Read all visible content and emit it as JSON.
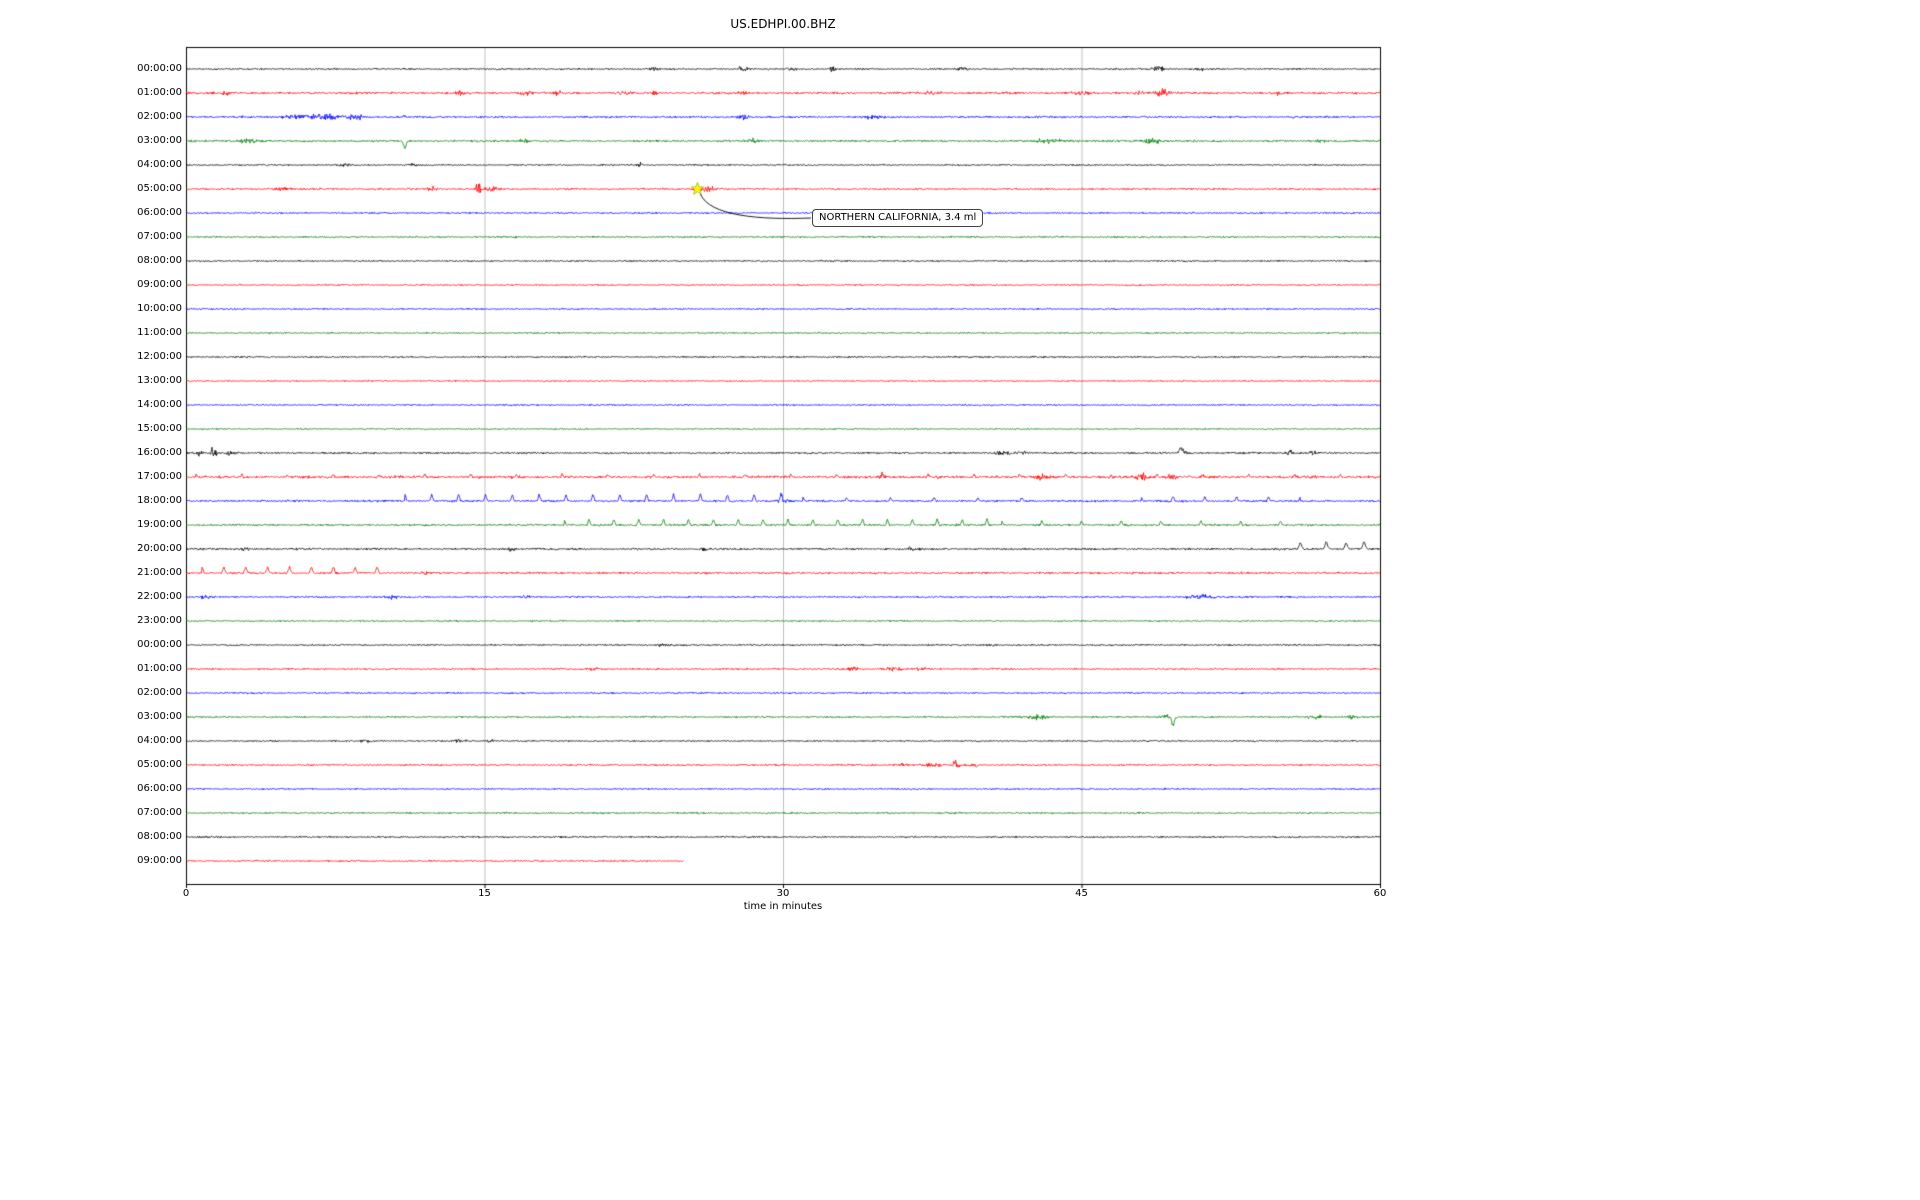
{
  "title": "US.EDHPI.00.BHZ",
  "chart_data": {
    "type": "seismogram-helicorder",
    "station": "US.EDHPI.00.BHZ",
    "xlabel": "time in minutes",
    "x_ticks": [
      0,
      15,
      30,
      45,
      60
    ],
    "x_range_minutes": [
      0,
      60
    ],
    "grid_minutes": [
      15,
      30,
      45
    ],
    "minutes_per_row": 60,
    "grid_color": "#b0b0b0",
    "colors": {
      "black": "#000000",
      "red": "#ff0000",
      "blue": "#0000ff",
      "green": "#008000"
    },
    "annotation": {
      "text": "NORTHERN CALIFORNIA, 3.4 ml",
      "row_index": 5,
      "minute": 25.7,
      "marker": "yellow-star",
      "marker_color": "#ffff00"
    },
    "rows": [
      {
        "label": "00:00:00",
        "color": "black",
        "noise": 1.0,
        "events": [
          {
            "t": 23.5,
            "dur": 0.3,
            "amp": 1.8
          },
          {
            "t": 28,
            "dur": 0.4,
            "amp": 3.2
          },
          {
            "t": 30.5,
            "dur": 0.3,
            "amp": 2.5
          },
          {
            "t": 32.5,
            "dur": 0.22,
            "amp": 5
          },
          {
            "t": 39,
            "dur": 0.3,
            "amp": 3.2
          },
          {
            "t": 48.8,
            "dur": 0.5,
            "amp": 4
          },
          {
            "t": 51,
            "dur": 0.3,
            "amp": 2.2
          }
        ]
      },
      {
        "label": "01:00:00",
        "color": "red",
        "noise": 1.3,
        "events": [
          {
            "t": 2,
            "dur": 0.4,
            "amp": 2.2
          },
          {
            "t": 13.8,
            "dur": 0.3,
            "amp": 4
          },
          {
            "t": 17,
            "dur": 0.4,
            "amp": 3.5
          },
          {
            "t": 18.7,
            "dur": 0.3,
            "amp": 3
          },
          {
            "t": 22,
            "dur": 0.4,
            "amp": 3
          },
          {
            "t": 23.5,
            "dur": 0.3,
            "amp": 2.5
          },
          {
            "t": 28,
            "dur": 0.4,
            "amp": 2
          },
          {
            "t": 37.5,
            "dur": 0.5,
            "amp": 2.3
          },
          {
            "t": 45,
            "dur": 0.5,
            "amp": 3.5
          },
          {
            "t": 48,
            "dur": 0.4,
            "amp": 3
          },
          {
            "t": 49,
            "dur": 0.45,
            "amp": 6.5
          },
          {
            "t": 55,
            "dur": 0.4,
            "amp": 2
          }
        ]
      },
      {
        "label": "02:00:00",
        "color": "blue",
        "noise": 1.2,
        "events": [
          {
            "t": 5.5,
            "dur": 0.8,
            "amp": 2.8
          },
          {
            "t": 7,
            "dur": 0.9,
            "amp": 4.5
          },
          {
            "t": 8.5,
            "dur": 0.7,
            "amp": 3.2
          },
          {
            "t": 11,
            "dur": 0.2,
            "amp": 3
          },
          {
            "t": 28,
            "dur": 0.4,
            "amp": 3
          },
          {
            "t": 34.5,
            "dur": 0.5,
            "amp": 3
          }
        ]
      },
      {
        "label": "03:00:00",
        "color": "green",
        "noise": 1.2,
        "events": [
          {
            "t": 3.2,
            "dur": 0.8,
            "amp": 3.2
          },
          {
            "t": 11,
            "dur": 0.12,
            "amp": 7,
            "type": "down"
          },
          {
            "t": 17,
            "dur": 0.4,
            "amp": 2.5
          },
          {
            "t": 28.5,
            "dur": 0.35,
            "amp": 3.2
          },
          {
            "t": 43.5,
            "dur": 1.2,
            "amp": 2.4
          },
          {
            "t": 48.5,
            "dur": 0.8,
            "amp": 3.4
          },
          {
            "t": 57,
            "dur": 0.4,
            "amp": 2
          }
        ]
      },
      {
        "label": "04:00:00",
        "color": "black",
        "noise": 0.9,
        "events": [
          {
            "t": 8,
            "dur": 0.5,
            "amp": 2
          },
          {
            "t": 11.5,
            "dur": 0.4,
            "amp": 2.4
          },
          {
            "t": 22.8,
            "dur": 0.2,
            "amp": 3
          }
        ]
      },
      {
        "label": "05:00:00",
        "color": "red",
        "noise": 1.1,
        "events": [
          {
            "t": 4.8,
            "dur": 0.6,
            "amp": 2
          },
          {
            "t": 12.4,
            "dur": 0.4,
            "amp": 2.4
          },
          {
            "t": 14.7,
            "dur": 0.18,
            "amp": 13
          },
          {
            "t": 15.3,
            "dur": 0.5,
            "amp": 5
          },
          {
            "t": 26.2,
            "dur": 0.6,
            "amp": 3.5
          }
        ]
      },
      {
        "label": "06:00:00",
        "color": "blue",
        "noise": 1.0,
        "events": []
      },
      {
        "label": "07:00:00",
        "color": "green",
        "noise": 1.0,
        "events": []
      },
      {
        "label": "08:00:00",
        "color": "black",
        "noise": 0.95,
        "events": []
      },
      {
        "label": "09:00:00",
        "color": "red",
        "noise": 0.85,
        "events": []
      },
      {
        "label": "10:00:00",
        "color": "blue",
        "noise": 0.9,
        "events": []
      },
      {
        "label": "11:00:00",
        "color": "green",
        "noise": 0.9,
        "events": []
      },
      {
        "label": "12:00:00",
        "color": "black",
        "noise": 1.0,
        "events": []
      },
      {
        "label": "13:00:00",
        "color": "red",
        "noise": 0.8,
        "events": []
      },
      {
        "label": "14:00:00",
        "color": "blue",
        "noise": 0.9,
        "events": []
      },
      {
        "label": "15:00:00",
        "color": "green",
        "noise": 0.8,
        "events": []
      },
      {
        "label": "16:00:00",
        "color": "black",
        "noise": 1.1,
        "events": [
          {
            "t": 0.6,
            "dur": 0.3,
            "amp": 3.5
          },
          {
            "t": 1.4,
            "dur": 0.22,
            "amp": 9
          },
          {
            "t": 2.2,
            "dur": 0.3,
            "amp": 3
          },
          {
            "t": 41,
            "dur": 0.5,
            "amp": 3
          },
          {
            "t": 42,
            "dur": 0.4,
            "amp": 2.4
          },
          {
            "t": 50,
            "dur": 0.15,
            "amp": 5,
            "type": "up"
          },
          {
            "t": 50.2,
            "dur": 0.3,
            "amp": 3.5
          },
          {
            "t": 55.5,
            "dur": 0.4,
            "amp": 3
          },
          {
            "t": 56.6,
            "dur": 0.3,
            "amp": 2.4
          }
        ]
      },
      {
        "label": "17:00:00",
        "color": "red",
        "noise": 1.5,
        "events": [
          {
            "type": "train",
            "t0": 0.5,
            "t1": 59.5,
            "period": 2.3,
            "amp": 2.5,
            "w": 0.09
          },
          {
            "t": 35,
            "dur": 0.3,
            "amp": 3
          },
          {
            "t": 43,
            "dur": 0.3,
            "amp": 4
          },
          {
            "t": 48,
            "dur": 0.4,
            "amp": 6
          },
          {
            "t": 49.5,
            "dur": 0.3,
            "amp": 4
          }
        ]
      },
      {
        "label": "18:00:00",
        "color": "blue",
        "noise": 1.2,
        "events": [
          {
            "type": "train",
            "t0": 11,
            "t1": 31,
            "period": 1.35,
            "amp": 7,
            "w": 0.1
          },
          {
            "type": "train",
            "t0": 31,
            "t1": 44,
            "period": 2.2,
            "amp": 3.5,
            "w": 0.1
          },
          {
            "t": 30,
            "dur": 0.5,
            "amp": 2.8
          },
          {
            "type": "train",
            "t0": 48,
            "t1": 56,
            "period": 1.6,
            "amp": 4.5,
            "w": 0.1
          }
        ]
      },
      {
        "label": "19:00:00",
        "color": "green",
        "noise": 1.2,
        "events": [
          {
            "type": "train",
            "t0": 19,
            "t1": 41,
            "period": 1.25,
            "amp": 6,
            "w": 0.1
          },
          {
            "type": "train",
            "t0": 41,
            "t1": 56,
            "period": 2.0,
            "amp": 4,
            "w": 0.1
          }
        ]
      },
      {
        "label": "20:00:00",
        "color": "black",
        "noise": 1.2,
        "events": [
          {
            "t": 3,
            "dur": 0.4,
            "amp": 2
          },
          {
            "t": 16.3,
            "dur": 0.3,
            "amp": 3.4
          },
          {
            "t": 26,
            "dur": 0.4,
            "amp": 2
          },
          {
            "t": 36.5,
            "dur": 0.4,
            "amp": 2.4
          },
          {
            "t": 45,
            "dur": 0.3,
            "amp": 2
          },
          {
            "t": 56,
            "dur": 0.12,
            "amp": 6,
            "type": "up"
          },
          {
            "t": 57.3,
            "dur": 0.12,
            "amp": 7,
            "type": "up"
          },
          {
            "t": 58.3,
            "dur": 0.12,
            "amp": 6,
            "type": "up"
          },
          {
            "t": 59.2,
            "dur": 0.12,
            "amp": 7,
            "type": "up"
          }
        ]
      },
      {
        "label": "21:00:00",
        "color": "red",
        "noise": 1.2,
        "events": [
          {
            "type": "train",
            "t0": 0.8,
            "t1": 10.5,
            "period": 1.1,
            "amp": 6,
            "w": 0.12
          },
          {
            "t": 12,
            "dur": 0.4,
            "amp": 2
          }
        ]
      },
      {
        "label": "22:00:00",
        "color": "blue",
        "noise": 1.0,
        "events": [
          {
            "t": 1,
            "dur": 0.4,
            "amp": 2.4
          },
          {
            "t": 10.3,
            "dur": 0.4,
            "amp": 2.4
          },
          {
            "t": 17,
            "dur": 0.4,
            "amp": 2
          },
          {
            "t": 51,
            "dur": 0.9,
            "amp": 2.4
          },
          {
            "t": 53.5,
            "dur": 0.4,
            "amp": 1.8
          }
        ]
      },
      {
        "label": "23:00:00",
        "color": "green",
        "noise": 0.9,
        "events": []
      },
      {
        "label": "00:00:00",
        "color": "black",
        "noise": 1.0,
        "events": [
          {
            "t": 24,
            "dur": 0.5,
            "amp": 1.2
          },
          {
            "t": 40.5,
            "dur": 0.4,
            "amp": 1.3
          }
        ]
      },
      {
        "label": "01:00:00",
        "color": "red",
        "noise": 1.0,
        "events": [
          {
            "t": 20.5,
            "dur": 0.5,
            "amp": 2
          },
          {
            "t": 33.5,
            "dur": 0.5,
            "amp": 2.4
          },
          {
            "t": 35.5,
            "dur": 0.6,
            "amp": 3
          },
          {
            "t": 37,
            "dur": 0.4,
            "amp": 2.2
          }
        ]
      },
      {
        "label": "02:00:00",
        "color": "blue",
        "noise": 1.0,
        "events": []
      },
      {
        "label": "03:00:00",
        "color": "green",
        "noise": 1.0,
        "events": [
          {
            "t": 42.8,
            "dur": 0.9,
            "amp": 3
          },
          {
            "t": 49.3,
            "dur": 0.5,
            "amp": 3.5
          },
          {
            "t": 49.6,
            "dur": 0.12,
            "amp": 8,
            "type": "down"
          },
          {
            "t": 56.8,
            "dur": 0.5,
            "amp": 2.5
          },
          {
            "t": 58.5,
            "dur": 0.4,
            "amp": 2.5
          }
        ]
      },
      {
        "label": "04:00:00",
        "color": "black",
        "noise": 0.9,
        "events": [
          {
            "t": 9,
            "dur": 0.4,
            "amp": 1.3
          },
          {
            "t": 13.8,
            "dur": 0.4,
            "amp": 2
          },
          {
            "t": 15.3,
            "dur": 0.3,
            "amp": 1.6
          }
        ]
      },
      {
        "label": "05:00:00",
        "color": "red",
        "noise": 1.0,
        "events": [
          {
            "t": 36,
            "dur": 0.5,
            "amp": 2.4
          },
          {
            "t": 37.5,
            "dur": 0.5,
            "amp": 3
          },
          {
            "t": 38.7,
            "dur": 0.2,
            "amp": 12
          },
          {
            "t": 39.6,
            "dur": 0.4,
            "amp": 2.4
          }
        ]
      },
      {
        "label": "06:00:00",
        "color": "blue",
        "noise": 0.9,
        "events": []
      },
      {
        "label": "07:00:00",
        "color": "green",
        "noise": 1.0,
        "events": []
      },
      {
        "label": "08:00:00",
        "color": "black",
        "noise": 1.0,
        "events": []
      },
      {
        "label": "09:00:00",
        "color": "red",
        "noise": 1.0,
        "end": 25,
        "events": []
      }
    ]
  }
}
